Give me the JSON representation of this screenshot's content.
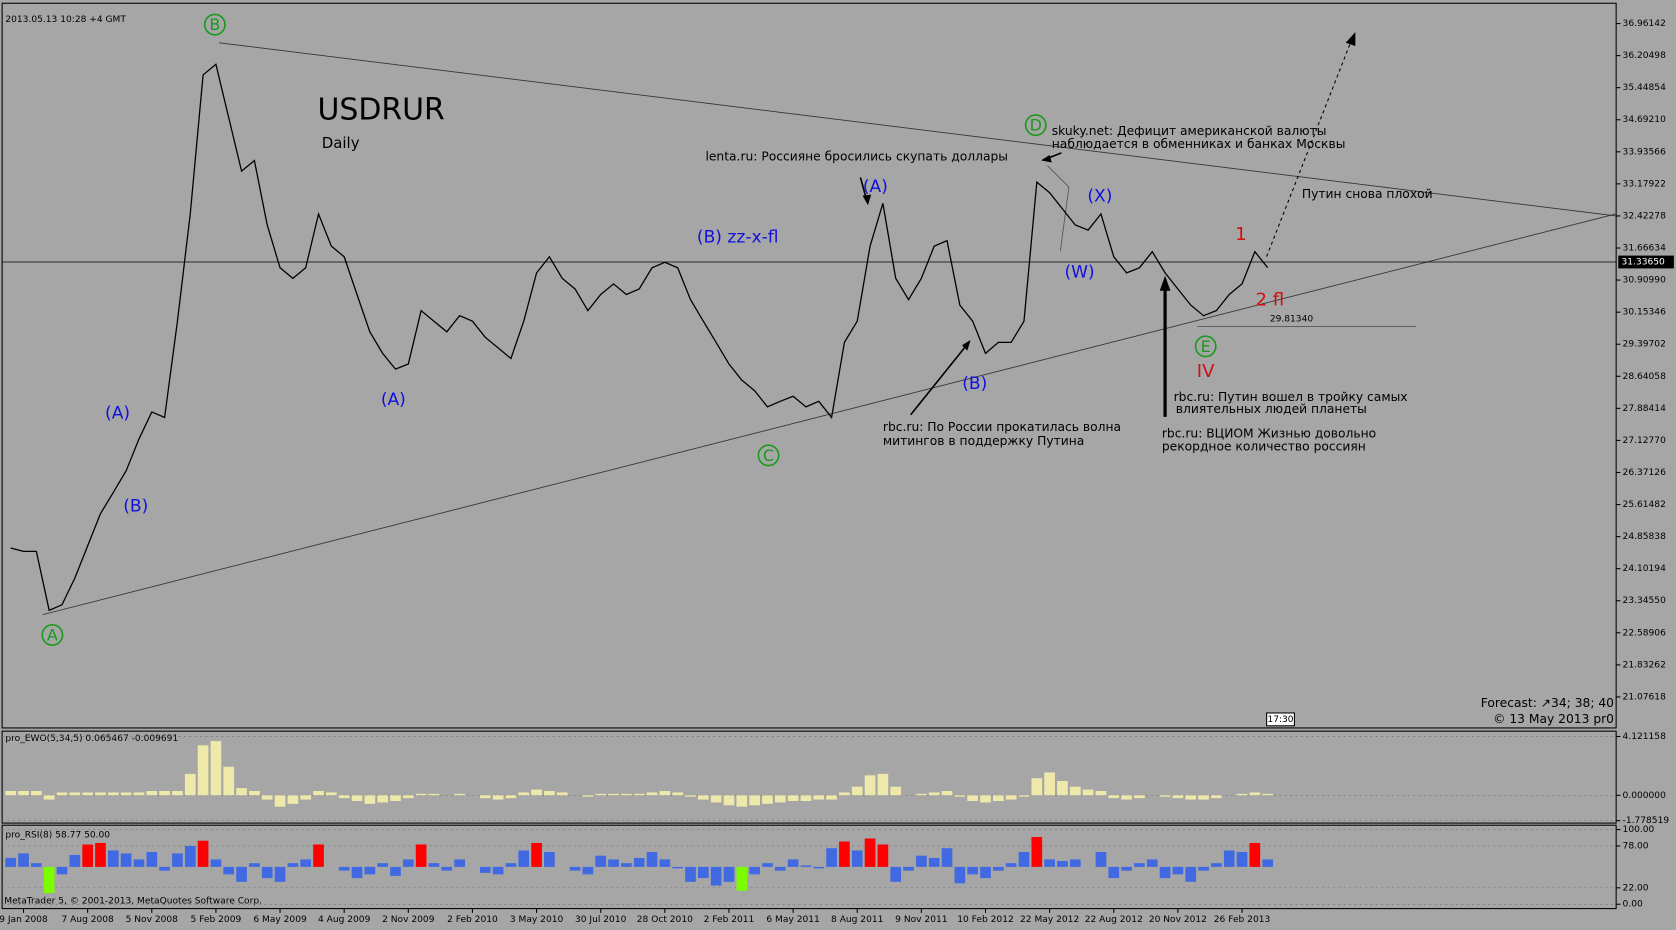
{
  "platform": {
    "timestamp": "2013.05.13 10:28 +4 GMT",
    "copyright": "MetaTrader 5, © 2001-2013, MetaQuotes Software Corp."
  },
  "chart_data": [
    {
      "type": "line",
      "title": "USDRUR",
      "subtitle": "Daily",
      "color": "#000000",
      "categories": [
        null,
        "9 Jan 2008",
        null,
        null,
        null,
        null,
        "7 Aug 2008",
        null,
        null,
        null,
        null,
        "5 Nov 2008",
        null,
        null,
        null,
        null,
        "5 Feb 2009",
        null,
        null,
        null,
        null,
        "6 May 2009",
        null,
        null,
        null,
        null,
        "4 Aug 2009",
        null,
        null,
        null,
        null,
        "2 Nov 2009",
        null,
        null,
        null,
        null,
        "2 Feb 2010",
        null,
        null,
        null,
        null,
        "3 May 2010",
        null,
        null,
        null,
        null,
        "30 Jul 2010",
        null,
        null,
        null,
        null,
        "28 Oct 2010",
        null,
        null,
        null,
        null,
        "2 Feb 2011",
        null,
        null,
        null,
        null,
        "6 May 2011",
        null,
        null,
        null,
        null,
        "8 Aug 2011",
        null,
        null,
        null,
        null,
        "9 Nov 2011",
        null,
        null,
        null,
        null,
        "10 Feb 2012",
        null,
        null,
        null,
        null,
        "22 May 2012",
        null,
        null,
        null,
        null,
        "22 Aug 2012",
        null,
        null,
        null,
        null,
        "20 Nov 2012",
        null,
        null,
        null,
        null,
        "26 Feb 2013",
        null,
        null
      ],
      "values": [
        24.59,
        24.51,
        24.51,
        23.12,
        23.25,
        23.88,
        24.64,
        25.4,
        25.9,
        26.41,
        27.16,
        27.8,
        27.67,
        29.94,
        32.47,
        35.75,
        36.0,
        34.74,
        33.48,
        33.73,
        32.21,
        31.2,
        30.95,
        31.2,
        32.47,
        31.71,
        31.46,
        30.57,
        29.69,
        29.18,
        28.81,
        28.93,
        30.19,
        29.94,
        29.69,
        30.07,
        29.94,
        29.56,
        29.31,
        29.06,
        29.94,
        31.08,
        31.46,
        30.95,
        30.7,
        30.19,
        30.57,
        30.82,
        30.57,
        30.7,
        31.2,
        31.33,
        31.2,
        30.45,
        29.94,
        29.44,
        28.93,
        28.55,
        28.3,
        27.92,
        28.05,
        28.17,
        27.92,
        28.05,
        27.67,
        29.44,
        29.94,
        31.71,
        32.72,
        30.95,
        30.45,
        30.95,
        31.71,
        31.84,
        30.32,
        29.94,
        29.18,
        29.44,
        29.44,
        29.94,
        33.22,
        32.97,
        32.59,
        32.21,
        32.09,
        32.47,
        31.46,
        31.08,
        31.2,
        31.58,
        31.08,
        30.7,
        30.32,
        30.07,
        30.19,
        30.57,
        30.82,
        31.58,
        31.2
      ],
      "ylim": [
        20.345,
        37.4405
      ],
      "yticks": [
        36.96142,
        36.20498,
        35.44854,
        {
          "value": 34.6921,
          "label": "34.69210"
        },
        33.93566,
        33.17922,
        32.42278,
        31.66634,
        {
          "value": 30.9099,
          "label": "30.90990"
        },
        30.15346,
        29.39702,
        28.64058,
        27.88414,
        {
          "value": 27.1277,
          "label": "27.12770"
        },
        26.37126,
        25.61482,
        24.85838,
        24.10194,
        {
          "value": 23.3455,
          "label": "23.34550"
        },
        22.58906,
        21.83262,
        21.07618
      ],
      "last_price": {
        "value": 31.3365,
        "label": "31.33650"
      },
      "level": {
        "value": 29.8134,
        "label": "29.81340"
      },
      "annotations": [
        "B",
        "A",
        "C",
        "D",
        "E",
        "(A)",
        "(B)",
        "(A)",
        "(B) zz-x-fl",
        "(A)",
        "(B)",
        "(W)",
        "(X)",
        "1",
        "2 fl",
        "IV",
        "lenta.ru: Россияне бросились скупать доллары",
        "skuky.net: Дефицит американской валюты",
        "наблюдается в обменниках и банках Москвы",
        "Путин снова плохой",
        "rbc.ru: По России прокатилась волна",
        "митингов в поддержку Путина",
        "rbc.ru: Путин вошел в тройку самых",
        "влиятельных людей планеты",
        "rbc.ru: ВЦИОМ Жизнью довольно",
        "рекордное количество россиян"
      ],
      "forecast": "Forecast: ↗34; 38; 40",
      "signature": "© 13 May 2013 pr0",
      "clock": "17:30"
    },
    {
      "type": "bar",
      "title": "pro_EWO(5,34,5) 0.065467 -0.009691",
      "color": "#eee8aa",
      "base": 0,
      "values": [
        0.3,
        0.3,
        0.3,
        -0.3,
        0.2,
        0.2,
        0.2,
        0.2,
        0.2,
        0.2,
        0.2,
        0.3,
        0.3,
        0.3,
        1.5,
        3.5,
        3.8,
        2.0,
        0.5,
        0.3,
        -0.3,
        -0.8,
        -0.6,
        -0.3,
        0.3,
        0.2,
        -0.2,
        -0.4,
        -0.6,
        -0.5,
        -0.4,
        -0.2,
        0.1,
        0.1,
        0,
        0.1,
        0,
        -0.2,
        -0.3,
        -0.2,
        0.2,
        0.4,
        0.3,
        0.2,
        0,
        -0.1,
        0.1,
        0.1,
        0.1,
        0.1,
        0.2,
        0.3,
        0.2,
        -0.1,
        -0.3,
        -0.5,
        -0.7,
        -0.8,
        -0.7,
        -0.6,
        -0.5,
        -0.4,
        -0.4,
        -0.3,
        -0.3,
        0.2,
        0.6,
        1.4,
        1.5,
        0.6,
        0,
        0.1,
        0.2,
        0.3,
        -0.1,
        -0.4,
        -0.5,
        -0.4,
        -0.3,
        -0.1,
        1.2,
        1.6,
        1.0,
        0.6,
        0.4,
        0.3,
        -0.2,
        -0.3,
        -0.2,
        0,
        -0.1,
        -0.2,
        -0.3,
        -0.3,
        -0.2,
        0,
        0.1,
        0.2,
        0.1
      ],
      "ylim": [
        -1.948,
        4.496
      ],
      "yticks": [
        {
          "value": 4.121158,
          "label": "4.121158"
        },
        {
          "value": 0,
          "label": "0.000000"
        },
        -1.778519
      ]
    },
    {
      "type": "bar",
      "title": "pro_RSI(8) 58.77 50.00",
      "color": "#4169e1",
      "color_high": "#ff0000",
      "color_low": "#7cfc00",
      "base": 50,
      "values": [
        62,
        68,
        55,
        15,
        40,
        66,
        80,
        82,
        72,
        68,
        60,
        70,
        45,
        68,
        78,
        85,
        60,
        40,
        30,
        55,
        35,
        30,
        55,
        60,
        80,
        50,
        45,
        35,
        40,
        55,
        38,
        60,
        80,
        55,
        45,
        60,
        50,
        42,
        40,
        55,
        72,
        82,
        70,
        50,
        45,
        40,
        65,
        60,
        55,
        62,
        70,
        60,
        48,
        30,
        35,
        25,
        30,
        18,
        40,
        55,
        45,
        60,
        52,
        48,
        75,
        84,
        72,
        88,
        80,
        30,
        45,
        65,
        62,
        75,
        28,
        40,
        35,
        45,
        55,
        70,
        90,
        60,
        58,
        60,
        50,
        70,
        35,
        45,
        55,
        60,
        35,
        40,
        30,
        45,
        55,
        72,
        70,
        82,
        60
      ],
      "ylim": [
        -5.8,
        105.8
      ],
      "yticks": [
        {
          "value": 100,
          "label": "100.00"
        },
        {
          "value": 78,
          "label": "78.00"
        },
        {
          "value": 22,
          "label": "22.00"
        },
        {
          "value": 0,
          "label": "0.00"
        }
      ]
    }
  ]
}
